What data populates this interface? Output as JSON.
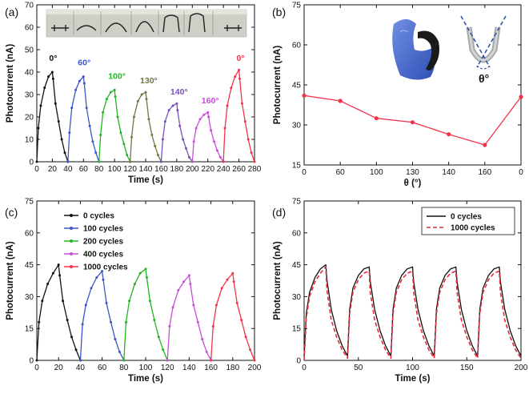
{
  "colors": {
    "black": "#111111",
    "blue": "#3b55c9",
    "green": "#22b522",
    "olive": "#707846",
    "purple": "#7a4fbf",
    "magenta": "#c64fd6",
    "red": "#f2334a",
    "red_dash": "#e52a3d"
  },
  "icons": {
    "photo_a": "bending-sequence-photo",
    "photo_b": "gloved-hand-bending-device-photo",
    "schematic_b": "bending-angle-schematic"
  },
  "chart_data": [
    {
      "panel": "(a)",
      "type": "line",
      "xlabel": "Time (s)",
      "ylabel": "Photocurrent (nA)",
      "xlim": [
        0,
        280
      ],
      "ylim": [
        0,
        70
      ],
      "xticks": [
        "0",
        "20",
        "40",
        "60",
        "80",
        "100",
        "120",
        "140",
        "160",
        "180",
        "200",
        "220",
        "240",
        "260",
        "280"
      ],
      "yticks": [
        "0",
        "10",
        "20",
        "30",
        "40",
        "50",
        "60",
        "70"
      ],
      "series": [
        {
          "name": "0°",
          "color": "#111111",
          "x": [
            0,
            2,
            5,
            10,
            15,
            20,
            21,
            24,
            28,
            32,
            36,
            40
          ],
          "y": [
            0,
            15,
            25,
            33,
            38,
            40,
            37,
            26,
            18,
            10,
            4,
            0
          ]
        },
        {
          "name": "60°",
          "color": "#3b55c9",
          "x": [
            40,
            42,
            45,
            50,
            55,
            60,
            61,
            64,
            68,
            72,
            76,
            80
          ],
          "y": [
            0,
            13,
            24,
            32,
            36,
            38,
            35,
            24,
            16,
            9,
            4,
            0
          ]
        },
        {
          "name": "100°",
          "color": "#22b522",
          "x": [
            80,
            82,
            85,
            90,
            95,
            100,
            101,
            104,
            108,
            112,
            116,
            120
          ],
          "y": [
            0,
            12,
            22,
            28,
            31,
            32,
            29,
            20,
            13,
            8,
            3,
            0
          ]
        },
        {
          "name": "130°",
          "color": "#707846",
          "x": [
            120,
            122,
            125,
            130,
            135,
            140,
            141,
            144,
            148,
            152,
            156,
            160
          ],
          "y": [
            0,
            11,
            20,
            27,
            30,
            31,
            28,
            19,
            12,
            7,
            3,
            0
          ]
        },
        {
          "name": "140°",
          "color": "#7a4fbf",
          "x": [
            160,
            162,
            165,
            170,
            175,
            180,
            181,
            184,
            188,
            192,
            196,
            200
          ],
          "y": [
            0,
            10,
            18,
            23,
            25,
            26,
            23,
            16,
            10,
            6,
            2,
            0
          ]
        },
        {
          "name": "160°",
          "color": "#c64fd6",
          "x": [
            200,
            202,
            205,
            210,
            215,
            220,
            221,
            224,
            228,
            232,
            236,
            240
          ],
          "y": [
            0,
            9,
            15,
            19,
            21,
            22,
            20,
            14,
            9,
            5,
            2,
            0
          ]
        },
        {
          "name": "0°",
          "color": "#f2334a",
          "x": [
            240,
            242,
            245,
            250,
            255,
            260,
            261,
            264,
            268,
            272,
            276,
            280
          ],
          "y": [
            0,
            15,
            25,
            33,
            38,
            41,
            37,
            26,
            18,
            10,
            4,
            0
          ]
        }
      ],
      "annotations": [
        {
          "text": "0°",
          "x": 21,
          "y": 45,
          "color": "#111111"
        },
        {
          "text": "60°",
          "x": 61,
          "y": 43,
          "color": "#3b55c9"
        },
        {
          "text": "100°",
          "x": 103,
          "y": 37,
          "color": "#22b522"
        },
        {
          "text": "130°",
          "x": 144,
          "y": 35,
          "color": "#707846"
        },
        {
          "text": "140°",
          "x": 183,
          "y": 30,
          "color": "#7a4fbf"
        },
        {
          "text": "160°",
          "x": 223,
          "y": 26,
          "color": "#c64fd6"
        },
        {
          "text": "0°",
          "x": 262,
          "y": 45,
          "color": "#f2334a"
        }
      ]
    },
    {
      "panel": "(b)",
      "type": "line",
      "xlabel": "θ (°)",
      "ylabel": "Photocurrent (nA)",
      "ylim": [
        15,
        75
      ],
      "yticks": [
        "15",
        "30",
        "45",
        "60",
        "75"
      ],
      "categories": [
        "0",
        "60",
        "100",
        "130",
        "140",
        "160",
        "0"
      ],
      "series": [
        {
          "name": "",
          "color": "#f2334a",
          "values": [
            41,
            39,
            32.5,
            31,
            26.5,
            22.5,
            40.5
          ]
        }
      ],
      "inset_label": "θ°"
    },
    {
      "panel": "(c)",
      "type": "line",
      "xlabel": "Time (s)",
      "ylabel": "Photocurrent (nA)",
      "xlim": [
        0,
        200
      ],
      "ylim": [
        0,
        75
      ],
      "xticks": [
        "0",
        "20",
        "40",
        "60",
        "80",
        "100",
        "120",
        "140",
        "160",
        "180",
        "200"
      ],
      "yticks": [
        "0",
        "15",
        "30",
        "45",
        "60",
        "75"
      ],
      "legend": "top-left",
      "series": [
        {
          "name": "0 cycles",
          "color": "#111111",
          "x": [
            0,
            2,
            5,
            10,
            15,
            20,
            21,
            24,
            28,
            32,
            36,
            40
          ],
          "y": [
            0,
            18,
            28,
            36,
            41,
            45,
            40,
            28,
            19,
            11,
            5,
            0
          ]
        },
        {
          "name": "100 cycles",
          "color": "#3b55c9",
          "x": [
            40,
            42,
            45,
            50,
            55,
            60,
            61,
            64,
            68,
            72,
            76,
            80
          ],
          "y": [
            0,
            17,
            26,
            34,
            39,
            42,
            38,
            27,
            18,
            10,
            4,
            0
          ]
        },
        {
          "name": "200 cycles",
          "color": "#22b522",
          "x": [
            80,
            82,
            85,
            90,
            95,
            100,
            101,
            104,
            108,
            112,
            116,
            120
          ],
          "y": [
            0,
            18,
            28,
            36,
            41,
            43,
            39,
            28,
            19,
            11,
            5,
            0
          ]
        },
        {
          "name": "400 cycles",
          "color": "#c64fd6",
          "x": [
            120,
            122,
            125,
            130,
            135,
            140,
            141,
            144,
            148,
            152,
            156,
            160
          ],
          "y": [
            0,
            16,
            25,
            33,
            37,
            40,
            36,
            26,
            18,
            10,
            4,
            0
          ]
        },
        {
          "name": "1000 cycles",
          "color": "#f2334a",
          "x": [
            160,
            162,
            165,
            170,
            175,
            180,
            181,
            184,
            188,
            192,
            196,
            200
          ],
          "y": [
            0,
            16,
            26,
            34,
            38,
            41,
            37,
            27,
            19,
            11,
            5,
            0
          ]
        }
      ]
    },
    {
      "panel": "(d)",
      "type": "line",
      "xlabel": "Time (s)",
      "ylabel": "Photocurrent (nA)",
      "xlim": [
        0,
        200
      ],
      "ylim": [
        0,
        75
      ],
      "xticks": [
        "0",
        "50",
        "100",
        "150",
        "200"
      ],
      "yticks": [
        "0",
        "15",
        "30",
        "45",
        "60",
        "75"
      ],
      "legend": "top-right",
      "series": [
        {
          "name": "0 cycles",
          "color": "#111111",
          "style": "solid",
          "x": [
            0,
            2,
            5,
            10,
            15,
            20,
            21,
            25,
            30,
            35,
            40,
            42,
            45,
            50,
            55,
            60,
            61,
            65,
            70,
            75,
            80,
            82,
            85,
            90,
            95,
            100,
            101,
            105,
            110,
            115,
            120,
            122,
            125,
            130,
            135,
            140,
            141,
            145,
            150,
            155,
            160,
            162,
            165,
            170,
            175,
            180,
            181,
            185,
            190,
            195,
            200
          ],
          "y": [
            2,
            22,
            32,
            39,
            43,
            45,
            38,
            24,
            14,
            7,
            2,
            24,
            34,
            40,
            43,
            44,
            37,
            24,
            14,
            7,
            2,
            24,
            34,
            40,
            43,
            44,
            37,
            24,
            14,
            7,
            2,
            24,
            34,
            40,
            43,
            44,
            37,
            24,
            14,
            7,
            2,
            24,
            34,
            40,
            43,
            44,
            37,
            24,
            14,
            7,
            2
          ]
        },
        {
          "name": "1000 cycles",
          "color": "#e52a3d",
          "style": "dashed",
          "x": [
            0,
            2,
            5,
            10,
            15,
            20,
            21,
            25,
            30,
            35,
            40,
            42,
            45,
            50,
            55,
            60,
            61,
            65,
            70,
            75,
            80,
            82,
            85,
            90,
            95,
            100,
            101,
            105,
            110,
            115,
            120,
            122,
            125,
            130,
            135,
            140,
            141,
            145,
            150,
            155,
            160,
            162,
            165,
            170,
            175,
            180,
            181,
            185,
            190,
            195,
            200
          ],
          "y": [
            0,
            20,
            30,
            37,
            41,
            44,
            33,
            19,
            11,
            5,
            1,
            22,
            32,
            38,
            41,
            42,
            32,
            19,
            11,
            5,
            1,
            22,
            32,
            38,
            41,
            42,
            32,
            19,
            11,
            5,
            1,
            22,
            32,
            38,
            41,
            42,
            32,
            19,
            11,
            5,
            1,
            22,
            32,
            38,
            41,
            42,
            32,
            19,
            11,
            5,
            1
          ]
        }
      ]
    }
  ]
}
